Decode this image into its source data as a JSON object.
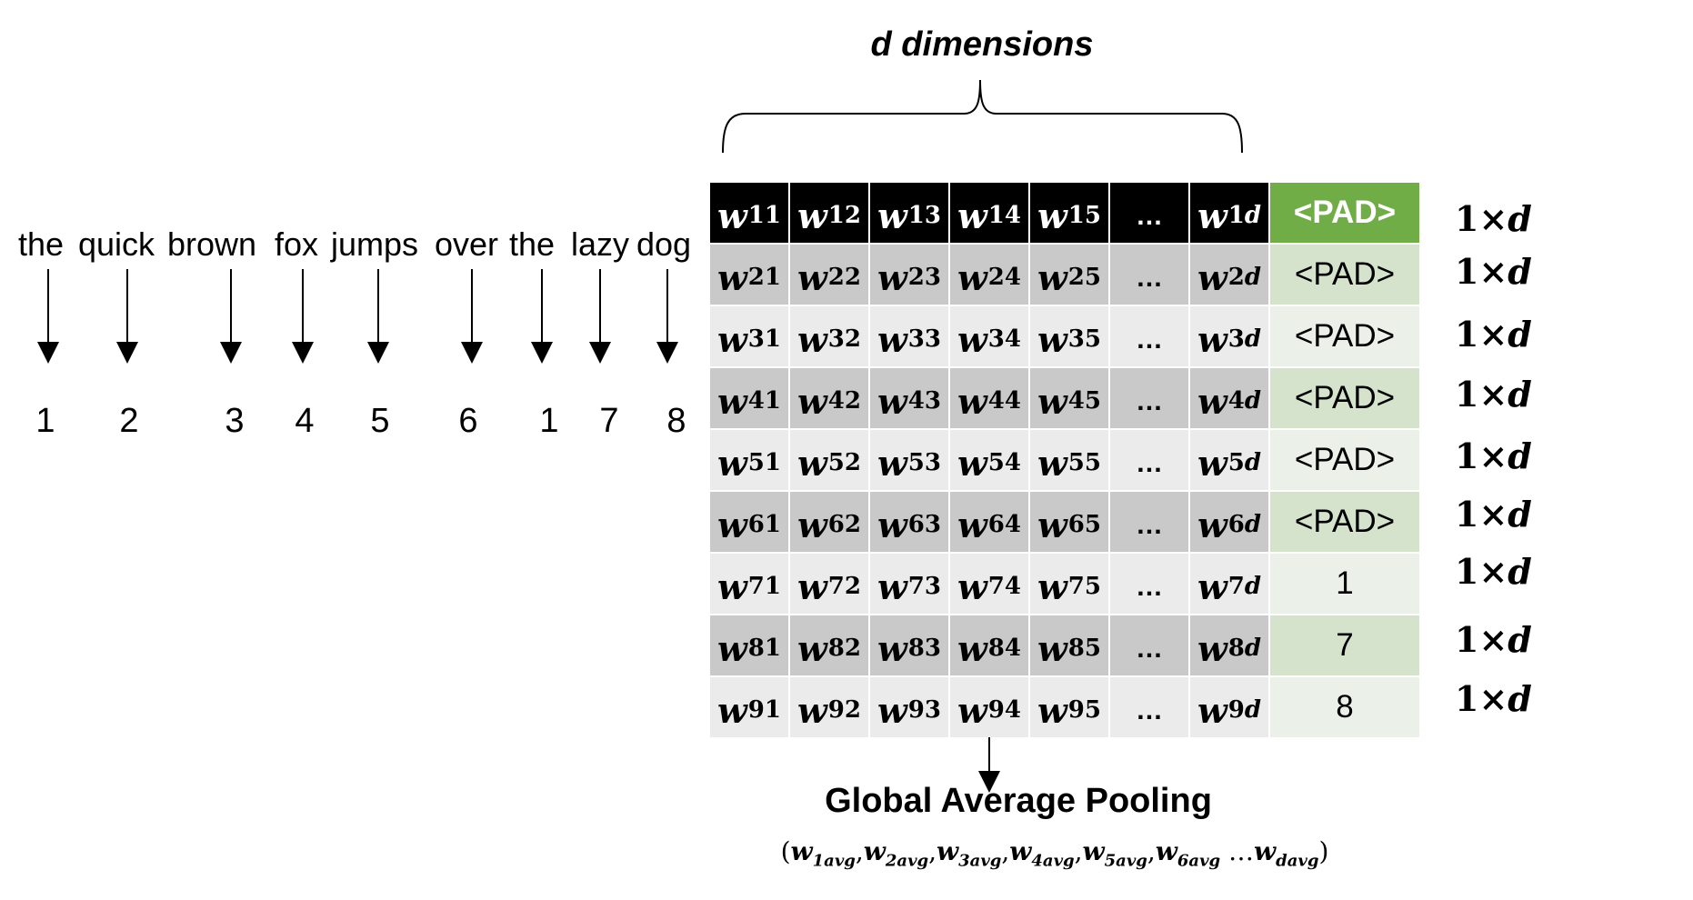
{
  "sentence": [
    "the",
    "quick",
    "brown",
    "fox",
    "jumps",
    "over",
    "the",
    "lazy",
    "dog"
  ],
  "token_ids": [
    "1",
    "2",
    "3",
    "4",
    "5",
    "6",
    "1",
    "7",
    "8"
  ],
  "dim_label": "d dimensions",
  "matrix": {
    "rows": [
      {
        "w": [
          "w",
          "w",
          "w",
          "w",
          "w",
          "…",
          "w"
        ],
        "sub": [
          "11",
          "12",
          "13",
          "14",
          "15",
          "",
          "1d"
        ],
        "last": "<PAD>"
      },
      {
        "w": [
          "w",
          "w",
          "w",
          "w",
          "w",
          "…",
          "w"
        ],
        "sub": [
          "21",
          "22",
          "23",
          "24",
          "25",
          "",
          "2d"
        ],
        "last": "<PAD>"
      },
      {
        "w": [
          "w",
          "w",
          "w",
          "w",
          "w",
          "…",
          "w"
        ],
        "sub": [
          "31",
          "32",
          "33",
          "34",
          "35",
          "",
          "3d"
        ],
        "last": "<PAD>"
      },
      {
        "w": [
          "w",
          "w",
          "w",
          "w",
          "w",
          "…",
          "w"
        ],
        "sub": [
          "41",
          "42",
          "43",
          "44",
          "45",
          "",
          "4d"
        ],
        "last": "<PAD>"
      },
      {
        "w": [
          "w",
          "w",
          "w",
          "w",
          "w",
          "…",
          "w"
        ],
        "sub": [
          "51",
          "52",
          "53",
          "54",
          "55",
          "",
          "5d"
        ],
        "last": "<PAD>"
      },
      {
        "w": [
          "w",
          "w",
          "w",
          "w",
          "w",
          "…",
          "w"
        ],
        "sub": [
          "61",
          "62",
          "63",
          "64",
          "65",
          "",
          "6d"
        ],
        "last": "<PAD>"
      },
      {
        "w": [
          "w",
          "w",
          "w",
          "w",
          "w",
          "…",
          "w"
        ],
        "sub": [
          "71",
          "72",
          "73",
          "74",
          "75",
          "",
          "7d"
        ],
        "last": "1"
      },
      {
        "w": [
          "w",
          "w",
          "w",
          "w",
          "w",
          "…",
          "w"
        ],
        "sub": [
          "81",
          "82",
          "83",
          "84",
          "85",
          "",
          "8d"
        ],
        "last": "7"
      },
      {
        "w": [
          "w",
          "w",
          "w",
          "w",
          "w",
          "…",
          "w"
        ],
        "sub": [
          "91",
          "92",
          "93",
          "94",
          "95",
          "",
          "9d"
        ],
        "last": "8"
      }
    ]
  },
  "row_labels": [
    "1×",
    "1×",
    "1×",
    "1×",
    "1×",
    "1×",
    "1×",
    "1×",
    "1×"
  ],
  "row_label_var": "d",
  "pooling_label": "Global Average Pooling",
  "formula": {
    "open": "(",
    "terms": [
      {
        "base": "w",
        "sub": "1avg"
      },
      {
        "base": "w",
        "sub": "2avg"
      },
      {
        "base": "w",
        "sub": "3avg"
      },
      {
        "base": "w",
        "sub": "4avg"
      },
      {
        "base": "w",
        "sub": "5avg"
      },
      {
        "base": "w",
        "sub": "6avg"
      }
    ],
    "ellipsis": " …",
    "last": {
      "base": "w",
      "sub": "davg"
    },
    "close": ")"
  },
  "colors": {
    "pad_header": "#70ad47",
    "pad_dark_row": "#d5e3cc",
    "pad_light_row": "#ebf1e8",
    "row_dark": "#c9c9c9",
    "row_light": "#ebebeb"
  }
}
